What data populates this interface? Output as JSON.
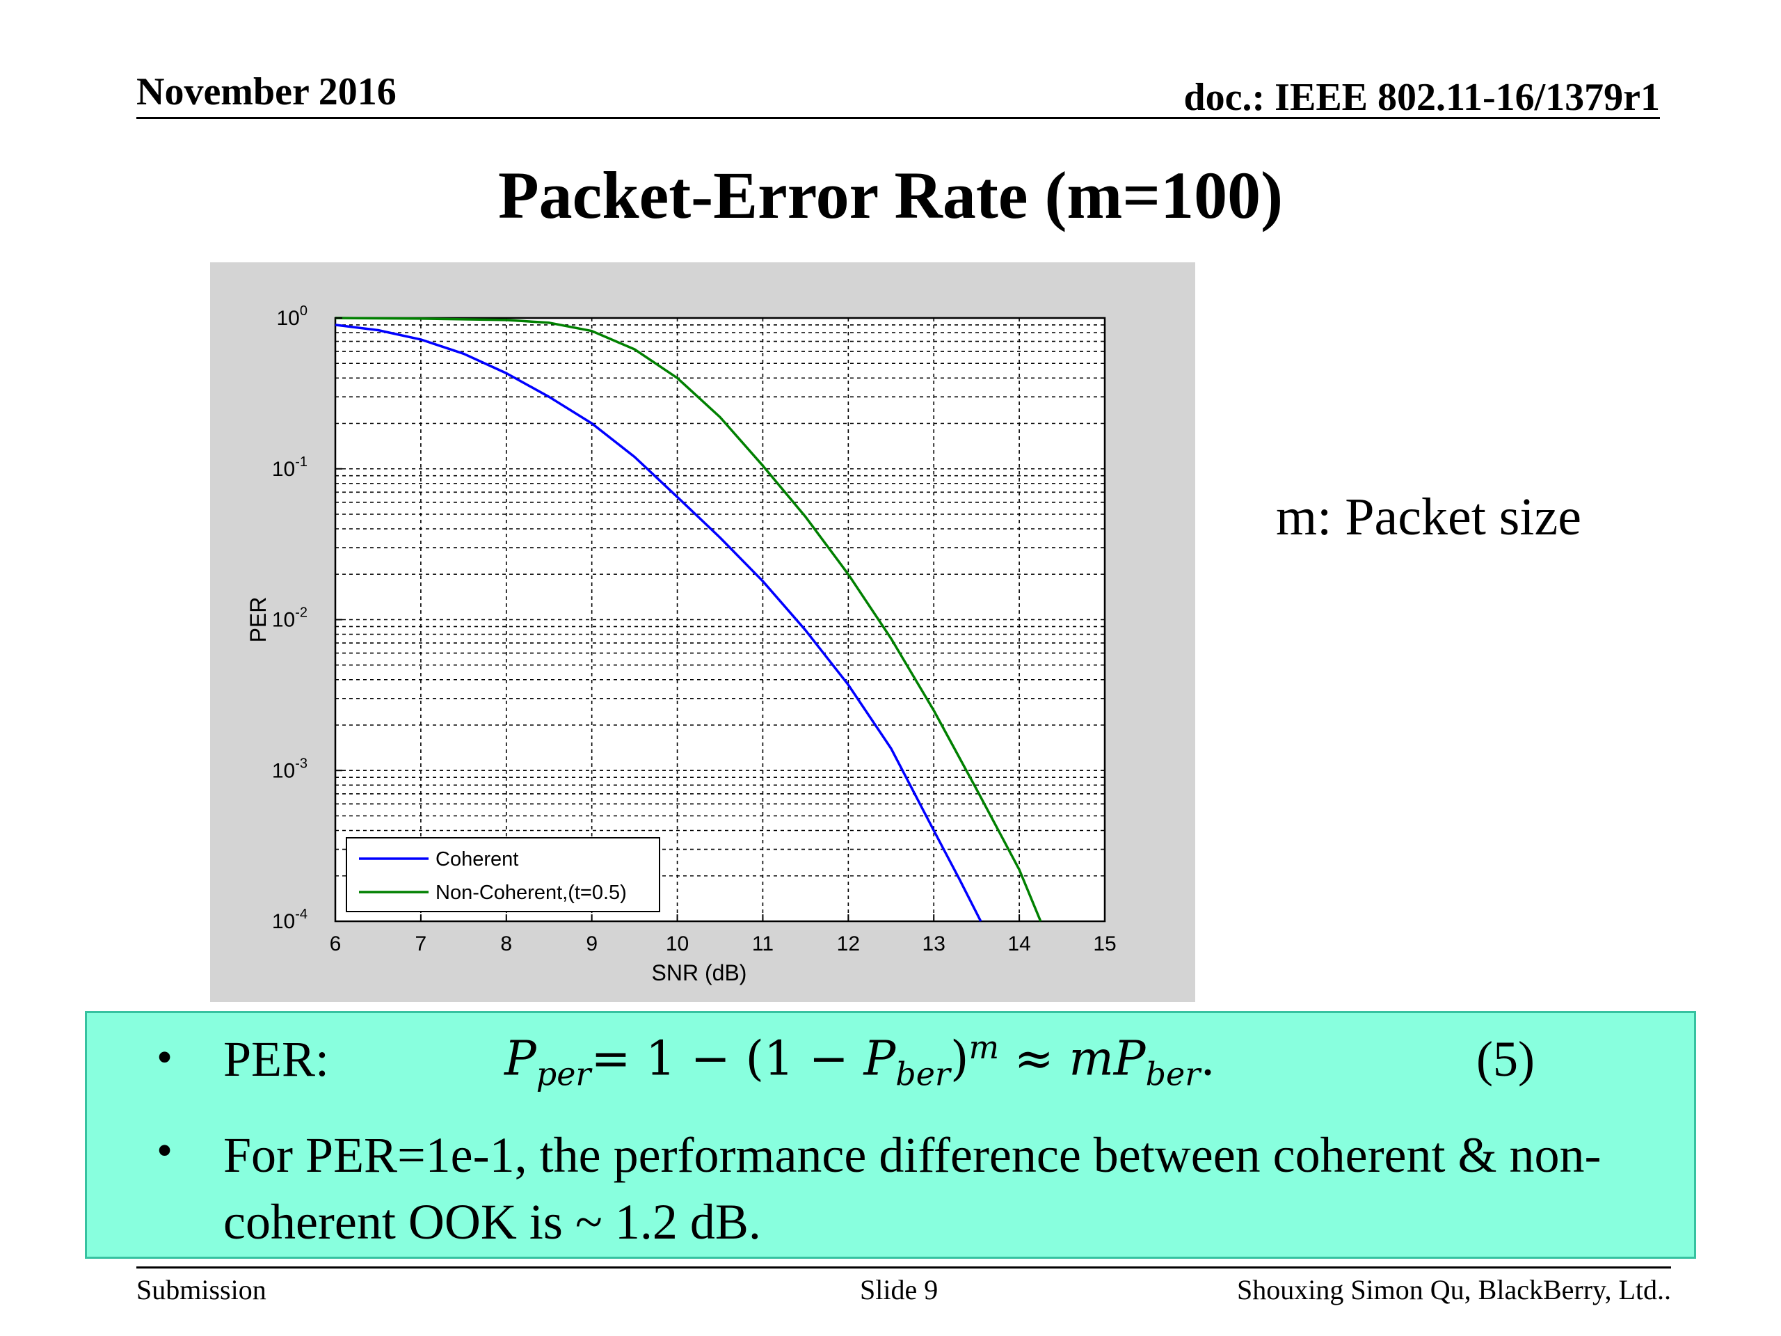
{
  "header": {
    "date": "November 2016",
    "doc_id": "doc.: IEEE 802.11-16/1379r1"
  },
  "slide_title": "Packet-Error Rate (m=100)",
  "side_note": "m: Packet size",
  "bullets": {
    "per_label": "PER:",
    "per_formula": {
      "lhs_base": "P",
      "lhs_sub": "per",
      "mid": "= 1 − (1 − ",
      "mid_base": "P",
      "mid_sub": "ber",
      "close": ")",
      "exp": "m",
      "approx": " ≈ ",
      "m_var": "m",
      "rhs_base": "P",
      "rhs_sub": "ber",
      "end": "."
    },
    "equation_number": "(5)",
    "bullet2_text": "For  PER=1e-1, the performance difference between coherent  & non-coherent OOK is  ~ 1.2 dB."
  },
  "footer": {
    "left": "Submission",
    "center": "Slide 9",
    "right": "Shouxing Simon Qu, BlackBerry, Ltd.."
  },
  "chart_data": {
    "type": "line",
    "xlabel": "SNR (dB)",
    "ylabel": "PER",
    "xlim": [
      6,
      15
    ],
    "ylim": [
      0.0001,
      1
    ],
    "yscale": "log",
    "grid": true,
    "legend_position": "bottom-left",
    "x_ticks": [
      "6",
      "7",
      "8",
      "9",
      "10",
      "11",
      "12",
      "13",
      "14",
      "15"
    ],
    "y_ticks": [
      {
        "base": "10",
        "exp": "0",
        "value": 1
      },
      {
        "base": "10",
        "exp": "-1",
        "value": 0.1
      },
      {
        "base": "10",
        "exp": "-2",
        "value": 0.01
      },
      {
        "base": "10",
        "exp": "-3",
        "value": 0.001
      },
      {
        "base": "10",
        "exp": "-4",
        "value": 0.0001
      }
    ],
    "series": [
      {
        "name": "Coherent",
        "color": "#0000ff",
        "x": [
          6,
          6.5,
          7,
          7.5,
          8,
          8.5,
          9,
          9.5,
          10,
          10.5,
          11,
          11.5,
          12,
          12.5,
          13,
          13.3,
          13.55
        ],
        "y": [
          0.9,
          0.83,
          0.72,
          0.58,
          0.43,
          0.3,
          0.2,
          0.12,
          0.065,
          0.035,
          0.018,
          0.0085,
          0.0037,
          0.0014,
          0.0004,
          0.00019,
          0.0001
        ]
      },
      {
        "name": "Non-Coherent,(t=0.5)",
        "color": "#008000",
        "x": [
          6,
          7,
          8,
          8.5,
          9,
          9.5,
          10,
          10.5,
          11,
          11.5,
          12,
          12.5,
          13,
          13.5,
          14,
          14.25
        ],
        "y": [
          1.0,
          0.99,
          0.97,
          0.93,
          0.82,
          0.62,
          0.4,
          0.22,
          0.105,
          0.048,
          0.02,
          0.0075,
          0.0025,
          0.00075,
          0.00022,
          0.0001
        ]
      }
    ]
  }
}
